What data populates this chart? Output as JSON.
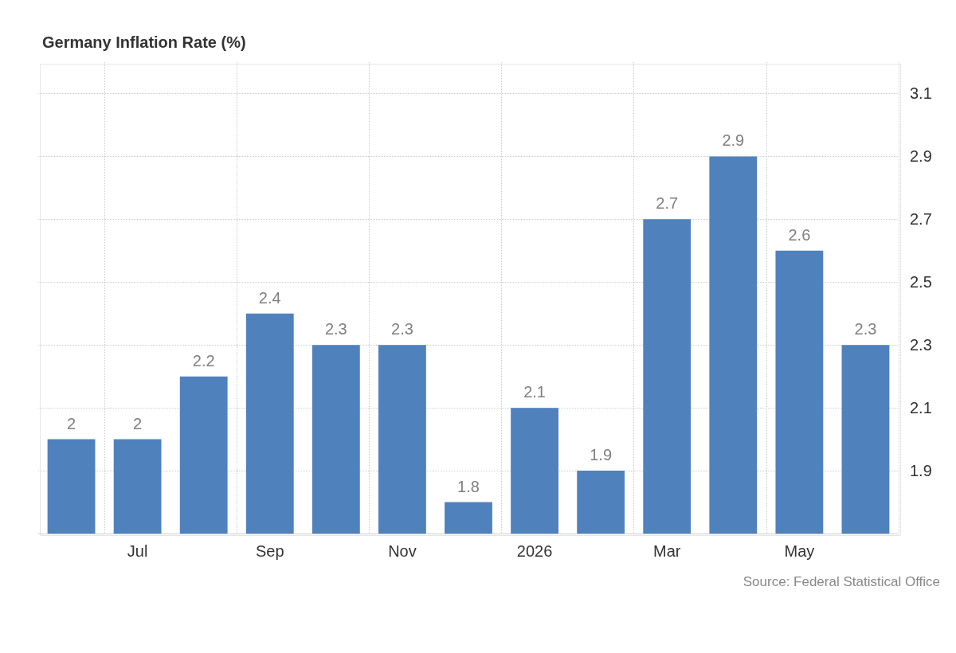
{
  "chart_data": {
    "type": "bar",
    "title": "Germany Inflation Rate (%)",
    "categories": [
      null,
      "Jul",
      null,
      "Sep",
      null,
      "Nov",
      null,
      "2026",
      null,
      "Mar",
      null,
      "May",
      null
    ],
    "values": [
      2,
      2,
      2.2,
      2.4,
      2.3,
      2.3,
      1.8,
      2.1,
      1.9,
      2.7,
      2.9,
      2.6,
      2.3
    ],
    "color": "#4f81bd",
    "ylim": [
      1.7,
      3.2
    ],
    "yticks": [
      1.9,
      2.1,
      2.3,
      2.5,
      2.7,
      2.9,
      3.1
    ],
    "grid": true,
    "data_labels": true,
    "annotations": [
      "Source: Federal Statistical Office"
    ]
  }
}
